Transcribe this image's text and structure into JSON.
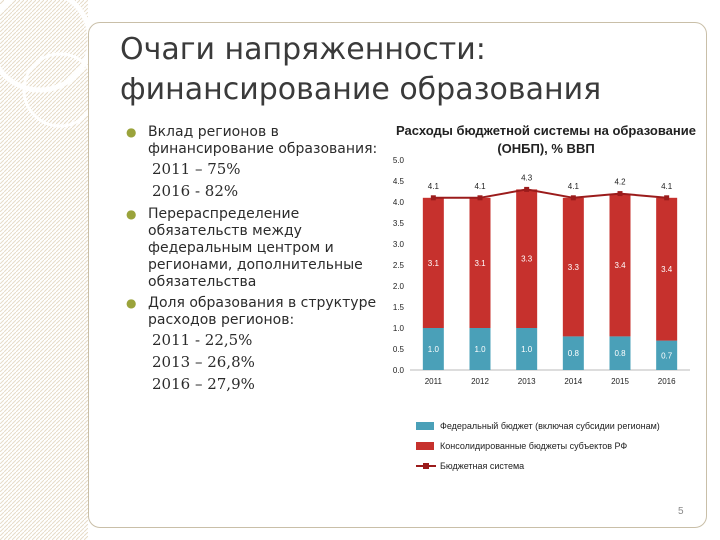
{
  "slide": {
    "title": "Очаги напряженности: финансирование образования",
    "page_number": "5"
  },
  "bullets": {
    "b1_text": "Вклад регионов в финансирование образования:",
    "b1_sub": [
      "2011 – 75%",
      "2016 - 82%"
    ],
    "b2_text": "Перераспределение обязательств между федеральным центром и регионами, дополнительные обязательства",
    "b3_text": "Доля образования в структуре расходов регионов:",
    "b3_sub": [
      "2011 - 22,5%",
      "2013 – 26,8%",
      "2016 – 27,9%"
    ]
  },
  "colors": {
    "federal": "#4aa0b8",
    "regional": "#c6312d",
    "line": "#9b1b1b",
    "bullet": "#9aa33b"
  },
  "chart_data": {
    "type": "bar",
    "title": "Расходы бюджетной системы на образование (ОНБП), % ВВП",
    "categories": [
      "2011",
      "2012",
      "2013",
      "2014",
      "2015",
      "2016"
    ],
    "stacked": true,
    "series": [
      {
        "name": "Федеральный бюджет (включая субсидии регионам)",
        "values": [
          1.0,
          1.0,
          1.0,
          0.8,
          0.8,
          0.7
        ]
      },
      {
        "name": "Консолидированные бюджеты субъектов РФ",
        "values": [
          3.1,
          3.1,
          3.3,
          3.3,
          3.4,
          3.4
        ]
      },
      {
        "name": "Бюджетная система",
        "values": [
          4.1,
          4.1,
          4.3,
          4.1,
          4.2,
          4.1
        ],
        "kind": "line"
      }
    ],
    "ylim": [
      0,
      5
    ],
    "y_ticks": [
      "0.0",
      "0.5",
      "1.0",
      "1.5",
      "2.0",
      "2.5",
      "3.0",
      "3.5",
      "4.0",
      "4.5",
      "5.0"
    ],
    "legend_position": "bottom"
  }
}
